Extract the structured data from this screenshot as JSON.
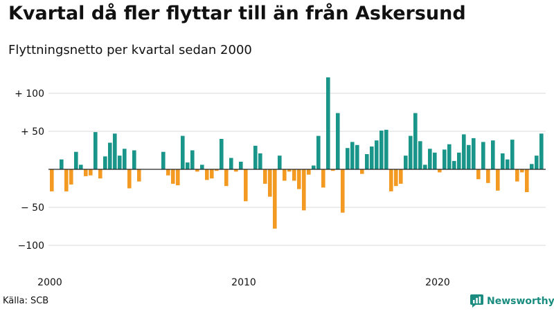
{
  "title": "Kvartal då fler flyttar till än från Askersund",
  "subtitle": "Flyttningsnetto per kvartal sedan 2000",
  "source": "Källa: SCB",
  "brand": {
    "name": "Newsworthy",
    "icon": "newsworthy-logo-icon"
  },
  "colors": {
    "positive": "#19958a",
    "negative": "#f29a22",
    "grid": "#d9d9d9",
    "zero": "#222222"
  },
  "chart_data": {
    "type": "bar",
    "title": "Kvartal då fler flyttar till än från Askersund",
    "subtitle": "Flyttningsnetto per kvartal sedan 2000",
    "xlabel": "",
    "ylabel": "",
    "first_period": "2000 Q1",
    "ylim": [
      -120,
      125
    ],
    "grid": true,
    "yticks": [
      {
        "value": 100,
        "label": "+ 100"
      },
      {
        "value": 50,
        "label": "+  50"
      },
      {
        "value": 0,
        "label": "0"
      },
      {
        "value": -50,
        "label": "− 50"
      },
      {
        "value": -100,
        "label": "−100"
      }
    ],
    "xticks": [
      {
        "index": 0,
        "label": "2000"
      },
      {
        "index": 40,
        "label": "2010"
      },
      {
        "index": 80,
        "label": "2020"
      }
    ],
    "values": [
      -29,
      0,
      13,
      -29,
      -20,
      23,
      6,
      -9,
      -8,
      49,
      -12,
      17,
      35,
      47,
      18,
      27,
      -25,
      25,
      -16,
      0,
      0,
      0,
      0,
      23,
      -8,
      -19,
      -21,
      44,
      9,
      25,
      -3,
      6,
      -14,
      -12,
      -2,
      40,
      -22,
      15,
      -3,
      10,
      -42,
      0,
      31,
      21,
      -19,
      -36,
      -78,
      18,
      -15,
      -3,
      -15,
      -26,
      -54,
      -7,
      5,
      44,
      -24,
      121,
      -2,
      74,
      -57,
      28,
      36,
      32,
      -6,
      20,
      30,
      38,
      51,
      52,
      -29,
      -22,
      -19,
      18,
      44,
      74,
      37,
      6,
      27,
      22,
      -4,
      26,
      33,
      11,
      22,
      46,
      32,
      41,
      -13,
      36,
      -18,
      38,
      -28,
      21,
      13,
      39,
      -16,
      -4,
      -30,
      7,
      18,
      47
    ]
  }
}
